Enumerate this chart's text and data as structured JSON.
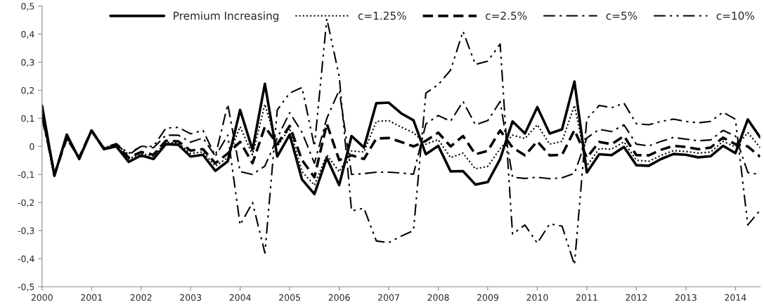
{
  "chart_data": {
    "type": "line",
    "x": [
      2000,
      2000.25,
      2000.5,
      2000.75,
      2001,
      2001.25,
      2001.5,
      2001.75,
      2002,
      2002.25,
      2002.5,
      2002.75,
      2003,
      2003.25,
      2003.5,
      2003.75,
      2004,
      2004.25,
      2004.5,
      2004.75,
      2005,
      2005.25,
      2005.5,
      2005.75,
      2006,
      2006.25,
      2006.5,
      2006.75,
      2007,
      2007.25,
      2007.5,
      2007.75,
      2008,
      2008.25,
      2008.5,
      2008.75,
      2009,
      2009.25,
      2009.5,
      2009.75,
      2010,
      2010.25,
      2010.5,
      2010.75,
      2011,
      2011.25,
      2011.5,
      2011.75,
      2012,
      2012.25,
      2012.5,
      2012.75,
      2013,
      2013.25,
      2013.5,
      2013.75,
      2014,
      2014.25,
      2014.5
    ],
    "series": [
      {
        "name": "Premium Increasing",
        "color": "#000000",
        "line_style": "solid",
        "values": [
          0.145,
          -0.105,
          0.042,
          -0.045,
          0.057,
          -0.01,
          0.0,
          -0.055,
          -0.032,
          -0.045,
          0.008,
          0.006,
          -0.036,
          -0.03,
          -0.087,
          -0.053,
          0.13,
          -0.012,
          0.223,
          -0.036,
          0.042,
          -0.118,
          -0.17,
          -0.041,
          -0.138,
          0.037,
          -0.004,
          0.154,
          0.156,
          0.118,
          0.093,
          -0.028,
          0.002,
          -0.089,
          -0.088,
          -0.136,
          -0.127,
          -0.045,
          0.089,
          0.046,
          0.14,
          0.046,
          0.061,
          0.231,
          -0.093,
          -0.028,
          -0.031,
          -0.002,
          -0.067,
          -0.069,
          -0.045,
          -0.027,
          -0.03,
          -0.039,
          -0.035,
          0.002,
          -0.024,
          0.096,
          0.032
        ]
      },
      {
        "name": "c=1.25%",
        "color": "#000000",
        "line_style": "dotted",
        "values": [
          0.13,
          -0.1,
          0.035,
          -0.04,
          0.057,
          -0.008,
          0.003,
          -0.045,
          -0.025,
          -0.035,
          0.015,
          0.012,
          -0.025,
          -0.02,
          -0.07,
          -0.04,
          0.07,
          -0.03,
          0.15,
          0.0,
          0.065,
          -0.09,
          -0.138,
          -0.03,
          -0.09,
          -0.016,
          -0.02,
          0.089,
          0.092,
          0.069,
          0.049,
          0.008,
          0.024,
          -0.04,
          -0.024,
          -0.08,
          -0.071,
          -0.008,
          0.04,
          0.028,
          0.077,
          0.008,
          0.018,
          0.146,
          -0.069,
          -0.008,
          -0.01,
          0.016,
          -0.049,
          -0.053,
          -0.032,
          -0.015,
          -0.018,
          -0.024,
          -0.02,
          0.018,
          -0.002,
          0.049,
          -0.004
        ]
      },
      {
        "name": "c=2.5%",
        "color": "#000000",
        "line_style": "dashed",
        "values": [
          0.12,
          -0.1,
          0.03,
          -0.04,
          0.056,
          -0.008,
          0.005,
          -0.04,
          -0.02,
          -0.03,
          0.02,
          0.018,
          -0.015,
          -0.01,
          -0.06,
          -0.025,
          0.016,
          -0.06,
          0.07,
          0.008,
          0.073,
          -0.049,
          -0.11,
          0.081,
          -0.049,
          -0.032,
          -0.045,
          0.028,
          0.03,
          0.016,
          0.0,
          0.02,
          0.049,
          0.0,
          0.037,
          -0.028,
          -0.016,
          0.057,
          -0.004,
          -0.032,
          0.018,
          -0.032,
          -0.03,
          0.058,
          -0.04,
          0.016,
          0.008,
          0.037,
          -0.031,
          -0.032,
          -0.012,
          0.002,
          -0.002,
          -0.01,
          -0.004,
          0.031,
          0.008,
          0.0,
          -0.037
        ]
      },
      {
        "name": "c=5%",
        "color": "#000000",
        "line_style": "dashdot",
        "values": [
          0.11,
          -0.1,
          0.03,
          -0.04,
          0.055,
          -0.005,
          0.008,
          -0.03,
          0.0,
          -0.005,
          0.04,
          0.04,
          0.015,
          0.03,
          -0.035,
          0.15,
          -0.09,
          -0.1,
          -0.07,
          0.03,
          0.12,
          0.05,
          -0.06,
          0.1,
          0.2,
          -0.1,
          -0.097,
          -0.092,
          -0.092,
          -0.095,
          -0.099,
          0.08,
          0.11,
          0.09,
          0.16,
          0.077,
          0.092,
          0.16,
          -0.11,
          -0.114,
          -0.11,
          -0.115,
          -0.112,
          -0.096,
          0.03,
          0.061,
          0.053,
          0.077,
          0.008,
          0.002,
          0.018,
          0.032,
          0.026,
          0.02,
          0.023,
          0.057,
          0.037,
          -0.093,
          -0.101
        ]
      },
      {
        "name": "c=10%",
        "color": "#000000",
        "line_style": "dashdotdot",
        "values": [
          0.1,
          -0.1,
          0.03,
          -0.04,
          0.055,
          -0.005,
          0.01,
          -0.025,
          0.0,
          0.0,
          0.065,
          0.068,
          0.045,
          0.057,
          -0.035,
          0.04,
          -0.28,
          -0.2,
          -0.38,
          0.13,
          0.19,
          0.21,
          0.0,
          0.455,
          0.25,
          -0.23,
          -0.22,
          -0.337,
          -0.343,
          -0.32,
          -0.3,
          0.19,
          0.22,
          0.272,
          0.41,
          0.292,
          0.304,
          0.365,
          -0.312,
          -0.28,
          -0.345,
          -0.276,
          -0.284,
          -0.422,
          0.097,
          0.146,
          0.138,
          0.154,
          0.081,
          0.077,
          0.089,
          0.097,
          0.089,
          0.084,
          0.089,
          0.122,
          0.097,
          -0.28,
          -0.227
        ]
      }
    ],
    "xlim": [
      2000,
      2014.5
    ],
    "xticks": [
      2000,
      2001,
      2002,
      2003,
      2004,
      2005,
      2006,
      2007,
      2008,
      2009,
      2010,
      2011,
      2012,
      2013,
      2014
    ],
    "ylim": [
      -0.5,
      0.5
    ],
    "yticks": [
      {
        "value": -0.5,
        "label": "-0,5"
      },
      {
        "value": -0.4,
        "label": "-0,4"
      },
      {
        "value": -0.3,
        "label": "-0,3"
      },
      {
        "value": -0.2,
        "label": "-0,2"
      },
      {
        "value": -0.1,
        "label": "-0,1"
      },
      {
        "value": 0,
        "label": "0"
      },
      {
        "value": 0.1,
        "label": "0,1"
      },
      {
        "value": 0.2,
        "label": "0,2"
      },
      {
        "value": 0.3,
        "label": "0,3"
      },
      {
        "value": 0.4,
        "label": "0,4"
      },
      {
        "value": 0.5,
        "label": "0,5"
      }
    ],
    "grid": false,
    "legend": "top right"
  }
}
